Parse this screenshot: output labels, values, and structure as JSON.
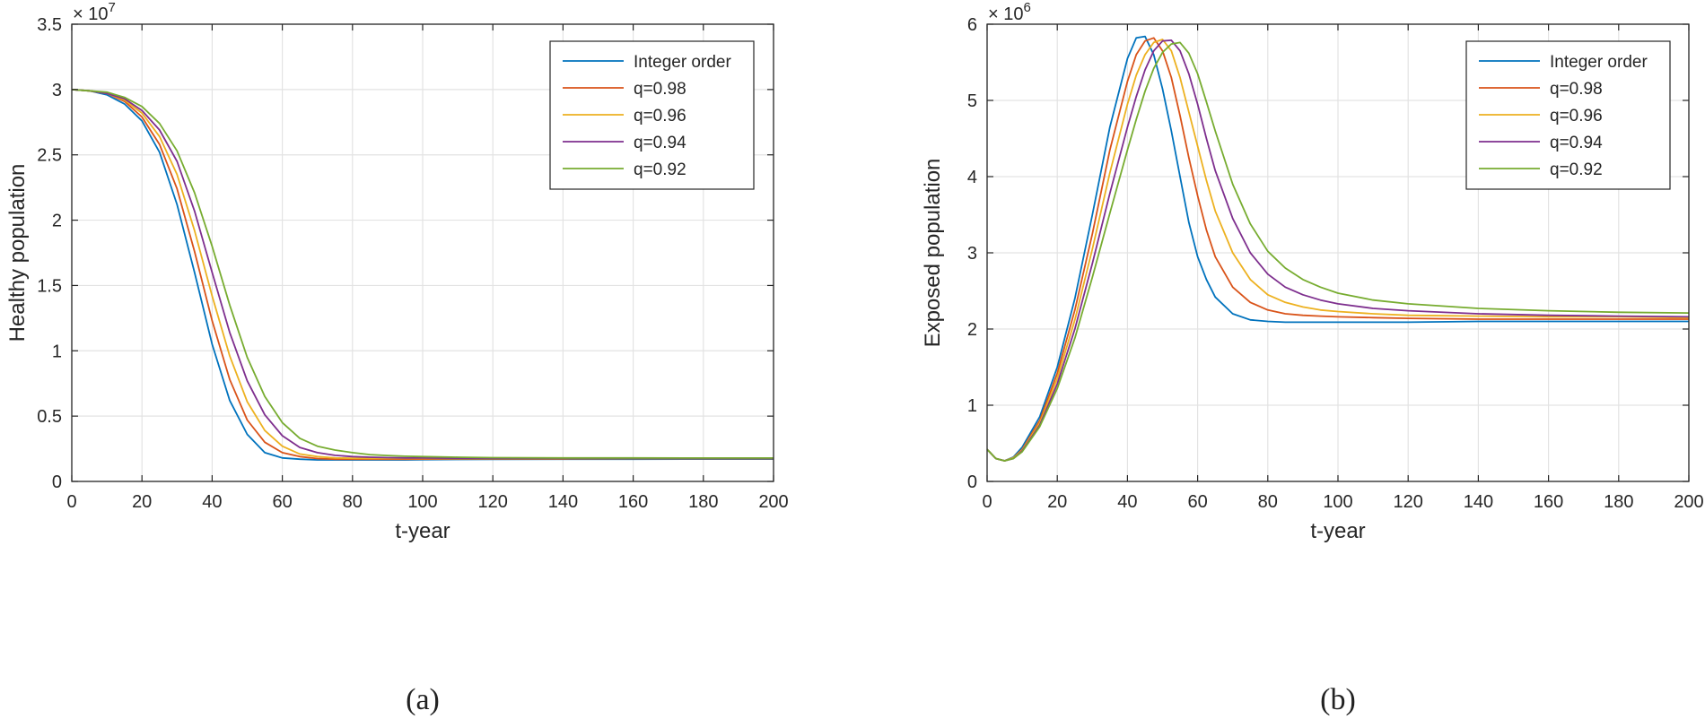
{
  "chart_data": [
    {
      "type": "line",
      "panel_label": "(a)",
      "title": "",
      "xlabel": "t-year",
      "ylabel": "Healthy population",
      "exponent_label": "× 10^7",
      "exponent_base": "× 10",
      "exponent_power": "7",
      "xlim": [
        0,
        200
      ],
      "ylim": [
        0,
        3.5
      ],
      "xticks": [
        "0",
        "20",
        "40",
        "60",
        "80",
        "100",
        "120",
        "140",
        "160",
        "180",
        "200"
      ],
      "yticks": [
        "0",
        "0.5",
        "1",
        "1.5",
        "2",
        "2.5",
        "3",
        "3.5"
      ],
      "grid": true,
      "legend_position": "top-right",
      "x": [
        0,
        5,
        10,
        15,
        20,
        25,
        30,
        35,
        40,
        45,
        50,
        55,
        60,
        65,
        70,
        75,
        80,
        85,
        90,
        95,
        100,
        110,
        120,
        140,
        160,
        180,
        200
      ],
      "series": [
        {
          "name": "Integer order",
          "color": "#0072BD",
          "values": [
            3.0,
            2.99,
            2.96,
            2.89,
            2.76,
            2.52,
            2.12,
            1.6,
            1.05,
            0.62,
            0.36,
            0.22,
            0.18,
            0.17,
            0.165,
            0.165,
            0.165,
            0.165,
            0.165,
            0.165,
            0.167,
            0.168,
            0.169,
            0.17,
            0.17,
            0.171,
            0.171
          ]
        },
        {
          "name": "q=0.98",
          "color": "#D95319",
          "values": [
            3.0,
            2.99,
            2.97,
            2.91,
            2.79,
            2.58,
            2.24,
            1.76,
            1.23,
            0.78,
            0.47,
            0.3,
            0.22,
            0.19,
            0.175,
            0.17,
            0.17,
            0.17,
            0.17,
            0.17,
            0.171,
            0.172,
            0.173,
            0.173,
            0.174,
            0.174,
            0.174
          ]
        },
        {
          "name": "q=0.96",
          "color": "#EDB120",
          "values": [
            3.0,
            2.99,
            2.97,
            2.92,
            2.82,
            2.64,
            2.35,
            1.92,
            1.42,
            0.96,
            0.61,
            0.39,
            0.27,
            0.21,
            0.19,
            0.18,
            0.177,
            0.176,
            0.176,
            0.176,
            0.176,
            0.176,
            0.176,
            0.176,
            0.176,
            0.176,
            0.176
          ]
        },
        {
          "name": "q=0.94",
          "color": "#7E2F8E",
          "values": [
            3.0,
            2.99,
            2.97,
            2.93,
            2.84,
            2.69,
            2.45,
            2.07,
            1.6,
            1.14,
            0.77,
            0.51,
            0.35,
            0.26,
            0.22,
            0.2,
            0.19,
            0.185,
            0.182,
            0.18,
            0.179,
            0.178,
            0.177,
            0.177,
            0.177,
            0.177,
            0.177
          ]
        },
        {
          "name": "q=0.92",
          "color": "#77AC30",
          "values": [
            3.0,
            2.99,
            2.98,
            2.94,
            2.87,
            2.74,
            2.53,
            2.21,
            1.8,
            1.35,
            0.95,
            0.65,
            0.45,
            0.33,
            0.27,
            0.24,
            0.22,
            0.205,
            0.198,
            0.193,
            0.19,
            0.185,
            0.182,
            0.18,
            0.18,
            0.179,
            0.179
          ]
        }
      ]
    },
    {
      "type": "line",
      "panel_label": "(b)",
      "title": "",
      "xlabel": "t-year",
      "ylabel": "Exposed population",
      "exponent_label": "× 10^6",
      "exponent_base": "× 10",
      "exponent_power": "6",
      "xlim": [
        0,
        200
      ],
      "ylim": [
        0,
        6
      ],
      "xticks": [
        "0",
        "20",
        "40",
        "60",
        "80",
        "100",
        "120",
        "140",
        "160",
        "180",
        "200"
      ],
      "yticks": [
        "0",
        "1",
        "2",
        "3",
        "4",
        "5",
        "6"
      ],
      "grid": true,
      "legend_position": "top-right",
      "x": [
        0,
        2.5,
        5,
        7.5,
        10,
        15,
        20,
        25,
        30,
        35,
        40,
        42.5,
        45,
        47.5,
        50,
        52.5,
        55,
        57.5,
        60,
        62.5,
        65,
        70,
        75,
        80,
        85,
        90,
        95,
        100,
        110,
        120,
        140,
        160,
        180,
        200
      ],
      "series": [
        {
          "name": "Integer order",
          "color": "#0072BD",
          "values": [
            0.42,
            0.3,
            0.27,
            0.32,
            0.45,
            0.85,
            1.5,
            2.4,
            3.5,
            4.65,
            5.55,
            5.82,
            5.84,
            5.6,
            5.15,
            4.6,
            4.0,
            3.4,
            2.95,
            2.65,
            2.42,
            2.2,
            2.12,
            2.1,
            2.09,
            2.09,
            2.09,
            2.09,
            2.09,
            2.09,
            2.1,
            2.1,
            2.1,
            2.1
          ]
        },
        {
          "name": "q=0.98",
          "color": "#D95319",
          "values": [
            0.42,
            0.3,
            0.27,
            0.31,
            0.42,
            0.8,
            1.42,
            2.25,
            3.25,
            4.35,
            5.25,
            5.6,
            5.78,
            5.82,
            5.65,
            5.3,
            4.8,
            4.25,
            3.75,
            3.3,
            2.95,
            2.55,
            2.35,
            2.25,
            2.2,
            2.18,
            2.17,
            2.16,
            2.15,
            2.14,
            2.13,
            2.13,
            2.13,
            2.13
          ]
        },
        {
          "name": "q=0.96",
          "color": "#EDB120",
          "values": [
            0.42,
            0.3,
            0.27,
            0.31,
            0.41,
            0.77,
            1.35,
            2.12,
            3.05,
            4.05,
            4.95,
            5.33,
            5.6,
            5.76,
            5.8,
            5.65,
            5.3,
            4.85,
            4.4,
            3.95,
            3.55,
            3.0,
            2.65,
            2.45,
            2.35,
            2.29,
            2.25,
            2.23,
            2.2,
            2.18,
            2.17,
            2.16,
            2.16,
            2.15
          ]
        },
        {
          "name": "q=0.94",
          "color": "#7E2F8E",
          "values": [
            0.42,
            0.3,
            0.27,
            0.3,
            0.4,
            0.74,
            1.28,
            2.0,
            2.86,
            3.78,
            4.65,
            5.05,
            5.4,
            5.65,
            5.78,
            5.79,
            5.65,
            5.35,
            4.95,
            4.5,
            4.08,
            3.45,
            3.0,
            2.72,
            2.55,
            2.45,
            2.38,
            2.33,
            2.27,
            2.24,
            2.2,
            2.18,
            2.17,
            2.16
          ]
        },
        {
          "name": "q=0.92",
          "color": "#77AC30",
          "values": [
            0.42,
            0.3,
            0.27,
            0.3,
            0.39,
            0.72,
            1.22,
            1.88,
            2.68,
            3.52,
            4.35,
            4.75,
            5.12,
            5.42,
            5.63,
            5.74,
            5.76,
            5.62,
            5.35,
            4.98,
            4.6,
            3.9,
            3.38,
            3.02,
            2.8,
            2.65,
            2.55,
            2.47,
            2.38,
            2.33,
            2.27,
            2.24,
            2.22,
            2.21
          ]
        }
      ]
    }
  ]
}
